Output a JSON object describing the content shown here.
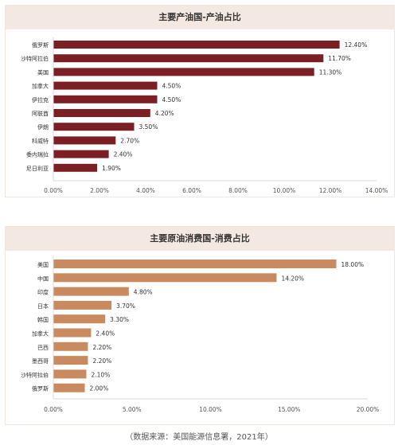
{
  "chart_data": [
    {
      "type": "bar",
      "orientation": "horizontal",
      "title": "主要产油国-产油占比",
      "categories": [
        "俄罗斯",
        "沙特阿拉伯",
        "美国",
        "加拿大",
        "伊拉克",
        "阿联酋",
        "伊朗",
        "科威特",
        "委内瑞拉",
        "尼日利亚"
      ],
      "values": [
        12.4,
        11.7,
        11.3,
        4.5,
        4.5,
        4.2,
        3.5,
        2.7,
        2.4,
        1.9
      ],
      "value_labels": [
        "12.40%",
        "11.70%",
        "11.30%",
        "4.50%",
        "4.50%",
        "4.20%",
        "3.50%",
        "2.70%",
        "2.40%",
        "1.90%"
      ],
      "xlim": [
        0,
        14
      ],
      "xticks": [
        0,
        2,
        4,
        6,
        8,
        10,
        12,
        14
      ],
      "xtick_labels": [
        "0.00%",
        "2.00%",
        "4.00%",
        "6.00%",
        "8.00%",
        "10.00%",
        "12.00%",
        "14.00%"
      ],
      "bar_color": "#7b1f24",
      "grid": false
    },
    {
      "type": "bar",
      "orientation": "horizontal",
      "title": "主要原油消费国-消费占比",
      "categories": [
        "美国",
        "中国",
        "印度",
        "日本",
        "韩国",
        "加拿大",
        "巴西",
        "墨西哥",
        "沙特阿拉伯",
        "俄罗斯"
      ],
      "values": [
        18.0,
        14.2,
        4.8,
        3.7,
        3.3,
        2.4,
        2.2,
        2.2,
        2.1,
        2.0
      ],
      "value_labels": [
        "18.00%",
        "14.20%",
        "4.80%",
        "3.70%",
        "3.30%",
        "2.40%",
        "2.20%",
        "2.20%",
        "2.10%",
        "2.00%"
      ],
      "xlim": [
        0,
        20
      ],
      "xticks": [
        0,
        5,
        10,
        15,
        20
      ],
      "xtick_labels": [
        "0.00%",
        "5.00%",
        "10.00%",
        "15.00%",
        "20.00%"
      ],
      "bar_color": "#c98a60",
      "grid": false
    }
  ],
  "source_note": "（数据来源：美国能源信息署，2021年）",
  "colors": {
    "panel_header_bg": "#f4e8e2",
    "panel_border": "#f3e6df",
    "text": "#333333"
  }
}
